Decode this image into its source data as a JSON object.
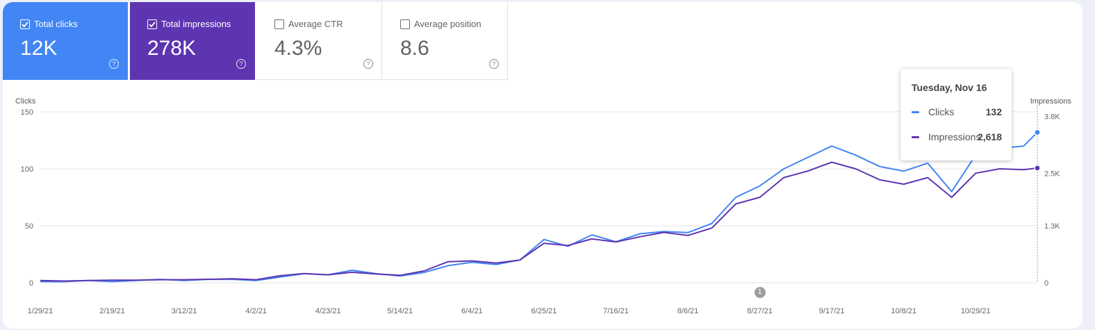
{
  "metrics": {
    "clicks": {
      "label": "Total clicks",
      "value": "12K",
      "checked": true,
      "color": "#4285f4"
    },
    "impressions": {
      "label": "Total impressions",
      "value": "278K",
      "checked": true,
      "color": "#5e35b1"
    },
    "ctr": {
      "label": "Average CTR",
      "value": "4.3%",
      "checked": false
    },
    "position": {
      "label": "Average position",
      "value": "8.6",
      "checked": false
    },
    "help_glyph": "?"
  },
  "tooltip": {
    "date": "Tuesday, Nov 16",
    "rows": [
      {
        "name": "Clicks",
        "value": "132",
        "color": "#4285f4"
      },
      {
        "name": "Impressions",
        "value": "2,618",
        "color": "#5e35b1"
      }
    ]
  },
  "annotation": {
    "label": "1",
    "date": "8/27/21"
  },
  "chart_data": {
    "type": "line",
    "xlabel": "",
    "left_axis": {
      "title": "Clicks",
      "range": [
        0,
        150
      ],
      "ticks": [
        "0",
        "50",
        "100",
        "150"
      ]
    },
    "right_axis": {
      "title": "Impressions",
      "range": [
        0,
        3900
      ],
      "ticks": [
        "0",
        "1.3K",
        "2.5K",
        "3.8K"
      ],
      "tick_values": [
        0,
        1300,
        2500,
        3800
      ]
    },
    "x_ticks": [
      "1/29/21",
      "2/19/21",
      "3/12/21",
      "4/2/21",
      "4/23/21",
      "5/14/21",
      "6/4/21",
      "6/25/21",
      "7/16/21",
      "8/6/21",
      "8/27/21",
      "9/17/21",
      "10/8/21",
      "10/29/21"
    ],
    "x_range": [
      "1/29/21",
      "11/16/21"
    ],
    "grid": true,
    "series": [
      {
        "name": "Clicks",
        "axis": "left",
        "color": "#4285f4",
        "points": [
          [
            "1/29/21",
            1
          ],
          [
            "2/5/21",
            1
          ],
          [
            "2/12/21",
            2
          ],
          [
            "2/19/21",
            1
          ],
          [
            "2/26/21",
            2
          ],
          [
            "3/5/21",
            3
          ],
          [
            "3/12/21",
            2
          ],
          [
            "3/19/21",
            3
          ],
          [
            "3/26/21",
            3
          ],
          [
            "4/2/21",
            2
          ],
          [
            "4/9/21",
            5
          ],
          [
            "4/16/21",
            8
          ],
          [
            "4/23/21",
            7
          ],
          [
            "4/30/21",
            11
          ],
          [
            "5/7/21",
            8
          ],
          [
            "5/14/21",
            6
          ],
          [
            "5/21/21",
            9
          ],
          [
            "5/28/21",
            15
          ],
          [
            "6/4/21",
            18
          ],
          [
            "6/11/21",
            16
          ],
          [
            "6/18/21",
            20
          ],
          [
            "6/25/21",
            38
          ],
          [
            "7/2/21",
            32
          ],
          [
            "7/9/21",
            42
          ],
          [
            "7/16/21",
            36
          ],
          [
            "7/23/21",
            43
          ],
          [
            "7/30/21",
            45
          ],
          [
            "8/6/21",
            44
          ],
          [
            "8/13/21",
            52
          ],
          [
            "8/20/21",
            75
          ],
          [
            "8/27/21",
            85
          ],
          [
            "9/3/21",
            100
          ],
          [
            "9/10/21",
            110
          ],
          [
            "9/17/21",
            120
          ],
          [
            "9/24/21",
            112
          ],
          [
            "10/1/21",
            102
          ],
          [
            "10/8/21",
            98
          ],
          [
            "10/15/21",
            105
          ],
          [
            "10/22/21",
            80
          ],
          [
            "10/29/21",
            112
          ],
          [
            "11/5/21",
            118
          ],
          [
            "11/12/21",
            120
          ],
          [
            "11/16/21",
            132
          ]
        ]
      },
      {
        "name": "Impressions",
        "axis": "right",
        "color": "#5e35b1",
        "points": [
          [
            "1/29/21",
            50
          ],
          [
            "2/5/21",
            40
          ],
          [
            "2/12/21",
            50
          ],
          [
            "2/19/21",
            60
          ],
          [
            "2/26/21",
            60
          ],
          [
            "3/5/21",
            70
          ],
          [
            "3/12/21",
            70
          ],
          [
            "3/19/21",
            80
          ],
          [
            "3/26/21",
            90
          ],
          [
            "4/2/21",
            70
          ],
          [
            "4/9/21",
            160
          ],
          [
            "4/16/21",
            210
          ],
          [
            "4/23/21",
            180
          ],
          [
            "4/30/21",
            240
          ],
          [
            "5/7/21",
            200
          ],
          [
            "5/14/21",
            170
          ],
          [
            "5/21/21",
            270
          ],
          [
            "5/28/21",
            480
          ],
          [
            "6/4/21",
            500
          ],
          [
            "6/11/21",
            450
          ],
          [
            "6/18/21",
            520
          ],
          [
            "6/25/21",
            900
          ],
          [
            "7/2/21",
            850
          ],
          [
            "7/9/21",
            1000
          ],
          [
            "7/16/21",
            930
          ],
          [
            "7/23/21",
            1050
          ],
          [
            "7/30/21",
            1150
          ],
          [
            "8/6/21",
            1080
          ],
          [
            "8/13/21",
            1250
          ],
          [
            "8/20/21",
            1800
          ],
          [
            "8/27/21",
            1950
          ],
          [
            "9/3/21",
            2400
          ],
          [
            "9/10/21",
            2550
          ],
          [
            "9/17/21",
            2750
          ],
          [
            "9/24/21",
            2600
          ],
          [
            "10/1/21",
            2350
          ],
          [
            "10/8/21",
            2250
          ],
          [
            "10/15/21",
            2400
          ],
          [
            "10/22/21",
            1950
          ],
          [
            "10/29/21",
            2500
          ],
          [
            "11/5/21",
            2600
          ],
          [
            "11/12/21",
            2580
          ],
          [
            "11/16/21",
            2618
          ]
        ]
      }
    ]
  }
}
